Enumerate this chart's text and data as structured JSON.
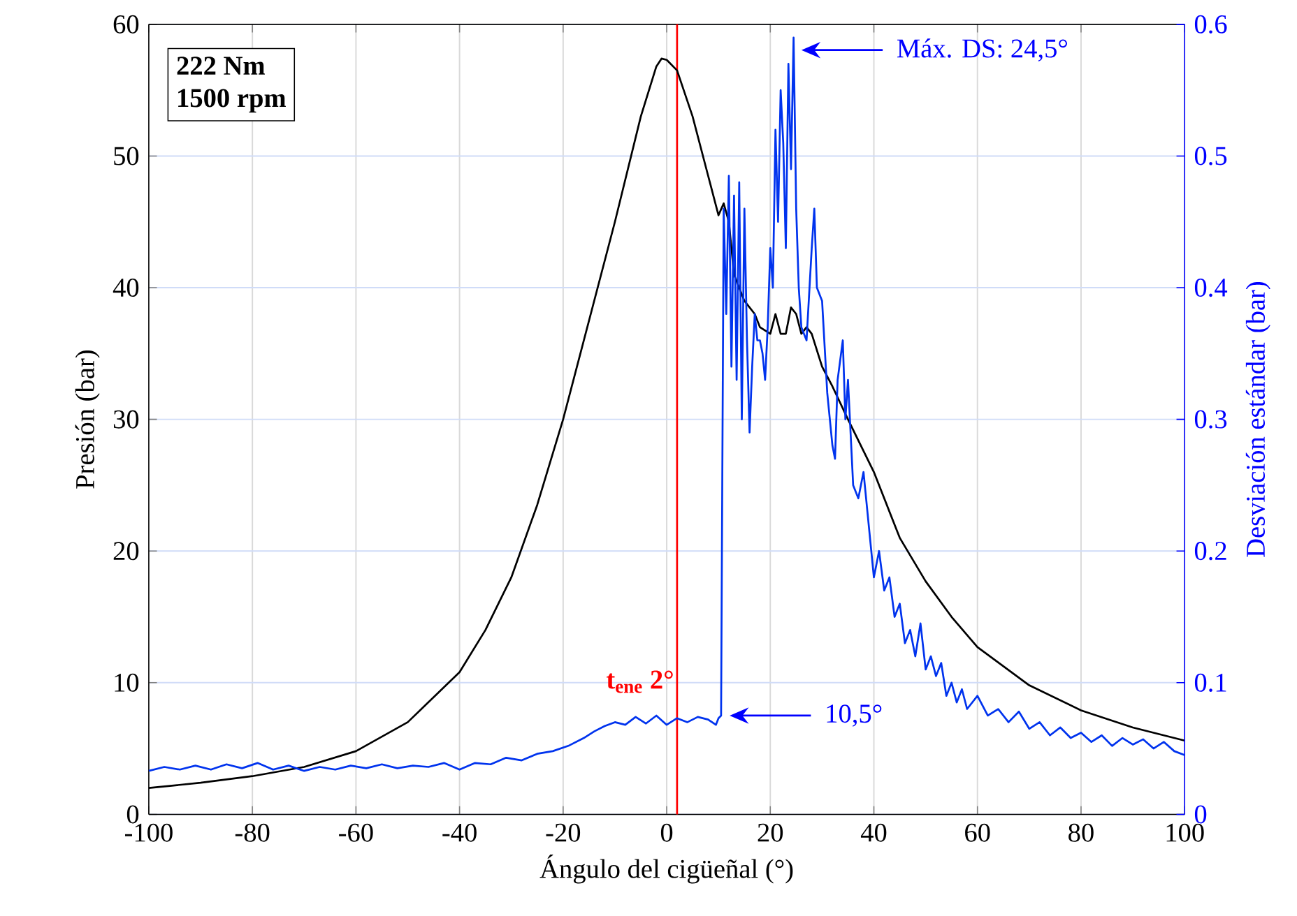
{
  "chart_data": {
    "type": "line",
    "xlabel": "Ángulo del cigüeñal (°)",
    "ylabel": "Presión (bar)",
    "y2label": "Desviación estándar (bar)",
    "xlim": [
      -100,
      100
    ],
    "xticks": [
      -100,
      -80,
      -60,
      -40,
      -20,
      0,
      20,
      40,
      60,
      80,
      100
    ],
    "ylim": [
      0,
      60
    ],
    "yticks": [
      0,
      10,
      20,
      30,
      40,
      50,
      60
    ],
    "y2lim": [
      0,
      0.6
    ],
    "y2ticks": [
      0,
      0.1,
      0.2,
      0.3,
      0.4,
      0.5,
      0.6
    ],
    "grid": true,
    "marker": "none",
    "line_style": "solid",
    "series": [
      {
        "color": "#000000",
        "x": [
          -100,
          -90,
          -80,
          -70,
          -60,
          -50,
          -40,
          -35,
          -30,
          -25,
          -20,
          -15,
          -10,
          -5,
          -2,
          -1,
          0,
          2,
          5,
          8,
          10,
          11,
          12,
          13,
          15,
          17,
          18,
          20,
          21,
          22,
          23,
          24,
          25,
          26,
          27,
          28,
          30,
          32,
          35,
          40,
          45,
          50,
          55,
          60,
          70,
          80,
          90,
          100
        ],
        "values": [
          2.0,
          2.4,
          2.9,
          3.6,
          4.8,
          7.0,
          10.8,
          14,
          18,
          23.5,
          30,
          37.5,
          45,
          53,
          56.8,
          57.4,
          57.3,
          56.5,
          53,
          48.5,
          45.5,
          46.4,
          45,
          41,
          39,
          38,
          37,
          36.5,
          38,
          36.5,
          36.5,
          38.5,
          38,
          36.5,
          37,
          36.5,
          34,
          32.5,
          30,
          26,
          21,
          17.7,
          15,
          12.7,
          9.8,
          7.9,
          6.6,
          5.6
        ]
      },
      {
        "color": "#0033ee",
        "axis": "y2",
        "x": [
          -100,
          -97,
          -94,
          -91,
          -88,
          -85,
          -82,
          -79,
          -76,
          -73,
          -70,
          -67,
          -64,
          -61,
          -58,
          -55,
          -52,
          -49,
          -46,
          -43,
          -40,
          -37,
          -34,
          -31,
          -28,
          -25,
          -22,
          -19,
          -16,
          -14,
          -12,
          -10,
          -8,
          -6,
          -4,
          -2,
          0,
          2,
          4,
          6,
          8,
          9.5,
          10,
          10.5,
          11,
          11.5,
          12,
          12.5,
          13,
          13.5,
          14,
          14.5,
          15,
          15.5,
          16,
          16.5,
          17,
          17.5,
          18,
          18.5,
          19,
          19.5,
          20,
          20.5,
          21,
          21.5,
          22,
          22.5,
          23,
          23.5,
          24,
          24.5,
          25,
          25.5,
          26,
          27,
          28,
          28.5,
          29,
          30,
          31,
          32,
          32.5,
          33,
          34,
          34.5,
          35,
          36,
          37,
          38,
          39,
          40,
          41,
          42,
          43,
          44,
          45,
          46,
          47,
          48,
          49,
          50,
          51,
          52,
          53,
          54,
          55,
          56,
          57,
          58,
          60,
          62,
          64,
          66,
          68,
          70,
          72,
          74,
          76,
          78,
          80,
          82,
          84,
          86,
          88,
          90,
          92,
          94,
          96,
          98,
          100
        ],
        "values": [
          0.033,
          0.036,
          0.034,
          0.037,
          0.034,
          0.038,
          0.035,
          0.039,
          0.034,
          0.037,
          0.033,
          0.036,
          0.034,
          0.037,
          0.035,
          0.038,
          0.035,
          0.037,
          0.036,
          0.039,
          0.034,
          0.039,
          0.038,
          0.043,
          0.041,
          0.046,
          0.048,
          0.052,
          0.058,
          0.063,
          0.067,
          0.07,
          0.068,
          0.074,
          0.069,
          0.075,
          0.068,
          0.073,
          0.07,
          0.074,
          0.072,
          0.068,
          0.073,
          0.075,
          0.46,
          0.38,
          0.485,
          0.34,
          0.47,
          0.33,
          0.48,
          0.3,
          0.46,
          0.36,
          0.29,
          0.34,
          0.38,
          0.36,
          0.36,
          0.35,
          0.33,
          0.37,
          0.43,
          0.4,
          0.52,
          0.45,
          0.55,
          0.51,
          0.43,
          0.57,
          0.49,
          0.59,
          0.46,
          0.4,
          0.37,
          0.36,
          0.43,
          0.46,
          0.4,
          0.39,
          0.32,
          0.28,
          0.27,
          0.33,
          0.36,
          0.3,
          0.33,
          0.25,
          0.24,
          0.26,
          0.22,
          0.18,
          0.2,
          0.17,
          0.18,
          0.15,
          0.16,
          0.13,
          0.14,
          0.12,
          0.145,
          0.11,
          0.12,
          0.105,
          0.115,
          0.09,
          0.1,
          0.085,
          0.095,
          0.08,
          0.09,
          0.075,
          0.08,
          0.07,
          0.078,
          0.065,
          0.07,
          0.06,
          0.066,
          0.058,
          0.062,
          0.055,
          0.06,
          0.052,
          0.058,
          0.053,
          0.057,
          0.05,
          0.055,
          0.048,
          0.045
        ]
      }
    ],
    "ref_lines": [
      {
        "axis": "x",
        "value": 2,
        "label": "**t$_{ene}$ 2°**",
        "color": "#ff0000"
      }
    ],
    "annotations": [
      "**222 Nm**",
      "**1500 rpm**",
      "Máx. DS: 24,5°",
      "10,5°"
    ]
  }
}
